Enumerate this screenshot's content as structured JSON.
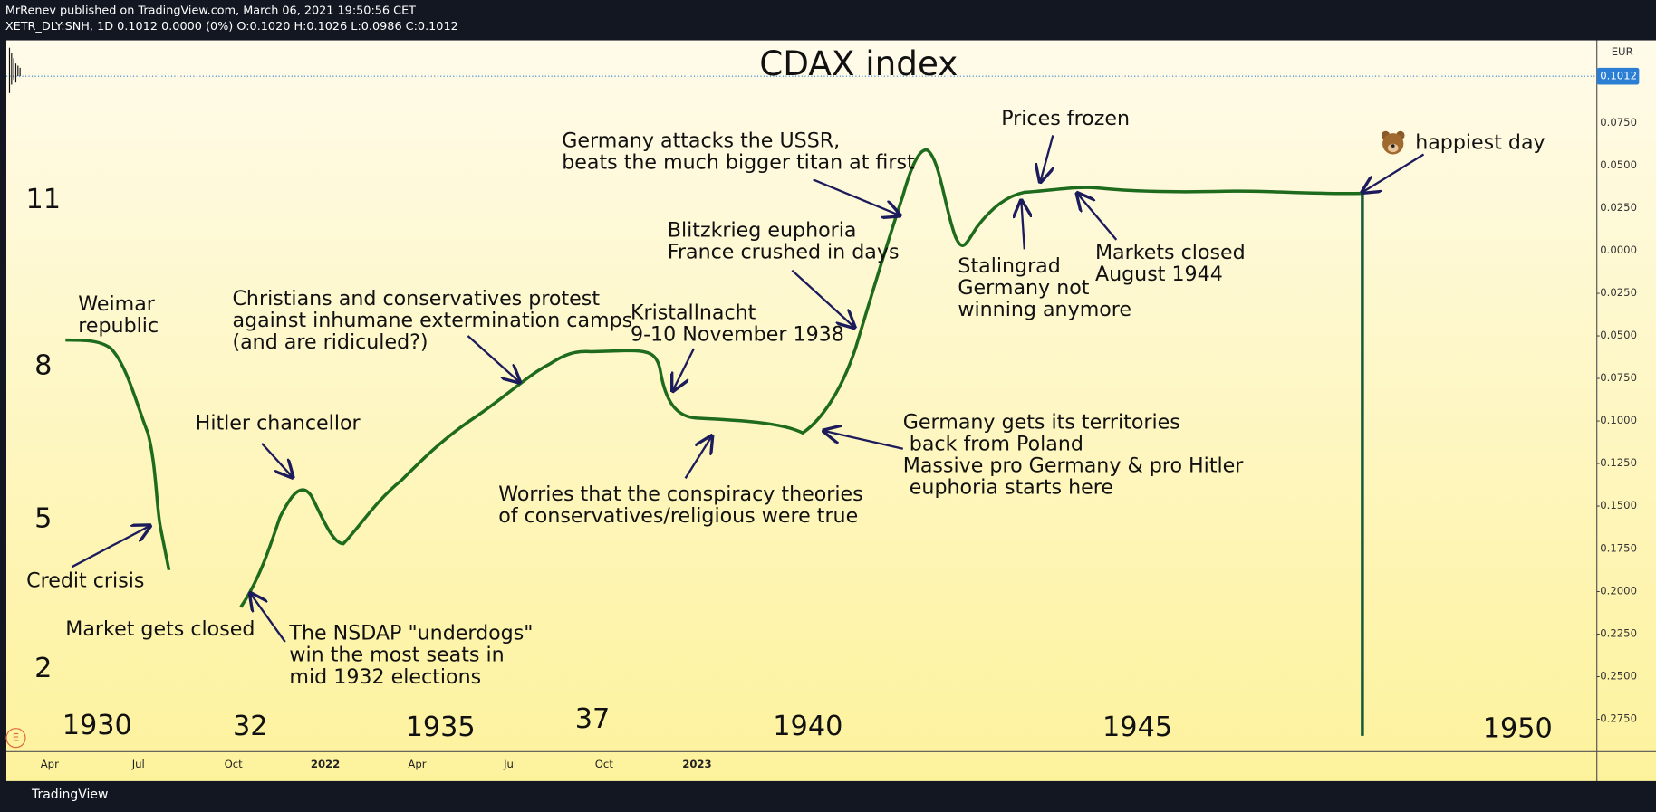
{
  "header": {
    "publisher": "MrRenev published on TradingView.com, March 06, 2021 19:50:56 CET",
    "symbol_line": "XETR_DLY:SNH, 1D 0.1012 0.0000 (0%) O:0.1020 H:0.1026 L:0.0986 C:0.1012"
  },
  "chart": {
    "title": "CDAX index",
    "currency": "EUR",
    "last_price": "0.1012",
    "event_badge": "E",
    "price_ticks": [
      "0.0750",
      "0.0500",
      "0.0250",
      "0.0000",
      "-0.0250",
      "-0.0500",
      "-0.0750",
      "-0.1000",
      "-0.1250",
      "-0.1500",
      "-0.1750",
      "-0.2000",
      "-0.2250",
      "-0.2500",
      "-0.2750"
    ],
    "time_ticks": [
      "Apr",
      "Jul",
      "Oct",
      "2022",
      "Apr",
      "Jul",
      "Oct",
      "2023"
    ],
    "hand_value_labels": [
      "11",
      "8",
      "5",
      "2"
    ],
    "hand_year_labels": [
      "1930",
      "32",
      "1935",
      "37",
      "1940",
      "1945",
      "1950"
    ],
    "annotations": [
      {
        "lines": [
          "Weimar",
          "republic"
        ]
      },
      {
        "lines": [
          "Credit crisis"
        ]
      },
      {
        "lines": [
          "Market gets closed"
        ]
      },
      {
        "lines": [
          "Hitler chancellor"
        ]
      },
      {
        "lines": [
          "The NSDAP \"underdogs\"",
          "win the most seats in",
          "mid 1932 elections"
        ]
      },
      {
        "lines": [
          "Christians and conservatives protest",
          "against inhumane extermination camps",
          "(and are ridiculed?)"
        ]
      },
      {
        "lines": [
          "Worries that the conspiracy theories",
          "of conservatives/religious were true"
        ]
      },
      {
        "lines": [
          "Kristallnacht",
          "9-10 November 1938"
        ]
      },
      {
        "lines": [
          "Blitzkrieg euphoria",
          "France crushed in days"
        ]
      },
      {
        "lines": [
          "Germany attacks the USSR,",
          "beats the much bigger titan at first"
        ]
      },
      {
        "lines": [
          "Germany gets its territories",
          " back from Poland",
          "Massive pro Germany & pro Hitler",
          " euphoria starts here"
        ]
      },
      {
        "lines": [
          "Prices frozen"
        ]
      },
      {
        "lines": [
          "Stalingrad",
          "Germany not",
          "winning anymore"
        ]
      },
      {
        "lines": [
          "Markets closed",
          "August 1944"
        ]
      },
      {
        "lines": [
          "happiest day"
        ]
      }
    ]
  },
  "footer": {
    "brand": "TradingView"
  }
}
